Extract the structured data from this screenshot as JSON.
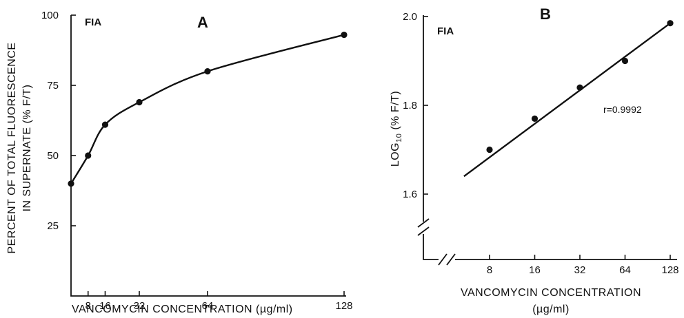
{
  "chart_data": [
    {
      "panel": "A",
      "type": "line",
      "tag": "FIA",
      "ylabel_line1": "PERCENT OF TOTAL FLUORESCENCE",
      "ylabel_line2": "IN SUPERNATE (% F/T)",
      "xlabel": "VANCOMYCIN  CONCENTRATION (µg/ml)",
      "x_scale": "linear",
      "xlim": [
        0,
        128
      ],
      "ylim": [
        0,
        100
      ],
      "x_ticks": [
        8,
        16,
        32,
        64,
        128
      ],
      "y_ticks": [
        25,
        50,
        75,
        100
      ],
      "series": [
        {
          "x": [
            0,
            8,
            16,
            32,
            64,
            128
          ],
          "y": [
            40,
            50,
            61,
            69,
            80,
            93
          ]
        }
      ]
    },
    {
      "panel": "B",
      "type": "line",
      "tag": "FIA",
      "ylabel": "LOG10 (% F/T)",
      "xlabel_line1": "VANCOMYCIN CONCENTRATION",
      "xlabel_line2": "(µg/ml)",
      "x_scale": "log2",
      "axis_break": true,
      "ylim": [
        1.4,
        2.0
      ],
      "x_ticks": [
        8,
        16,
        32,
        64,
        128
      ],
      "y_ticks": [
        1.6,
        1.8,
        2.0
      ],
      "annotation": "r=0.9992",
      "series": [
        {
          "x": [
            8,
            16,
            32,
            64,
            128
          ],
          "y": [
            1.7,
            1.77,
            1.84,
            1.9,
            1.985
          ]
        }
      ],
      "fit_line": {
        "x": [
          5.4,
          128
        ],
        "y": [
          1.64,
          1.985
        ]
      }
    }
  ]
}
